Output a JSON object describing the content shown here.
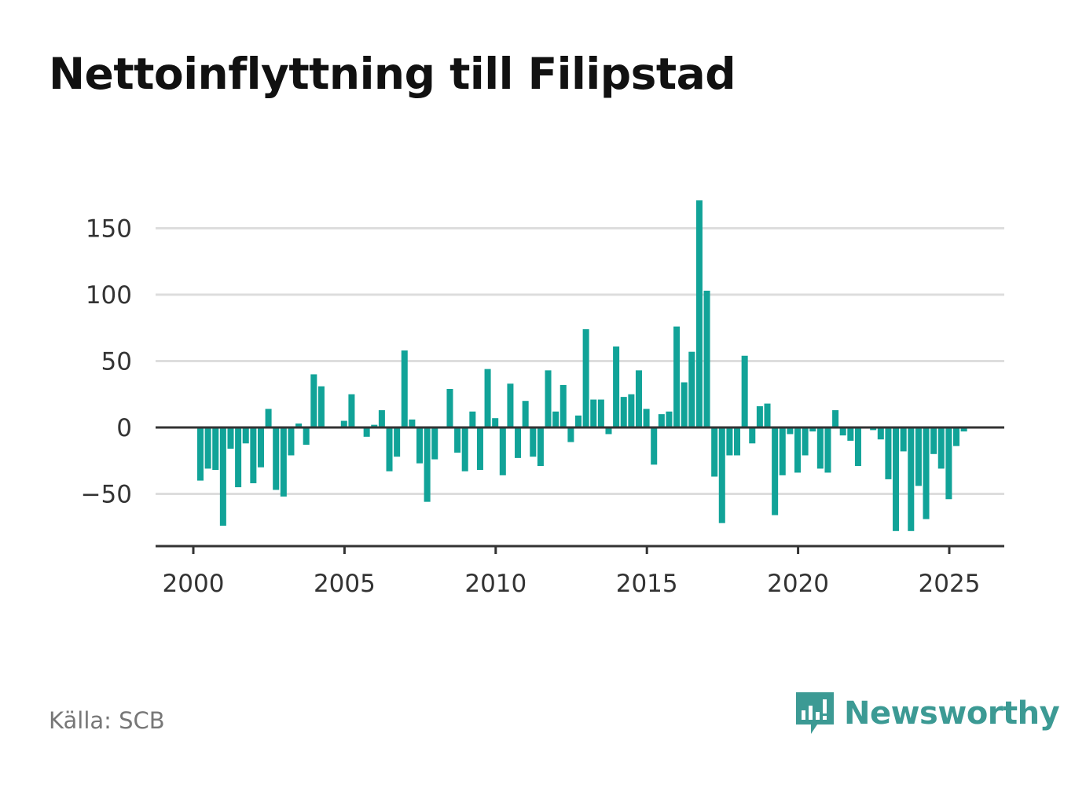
{
  "title": "Nettoinflyttning till Filipstad",
  "source": "Källa: SCB",
  "brand": {
    "name": "Newsworthy",
    "logo_icon": "bar-chart-speech-bubble-icon"
  },
  "colors": {
    "bar": "#11a398",
    "grid": "#dddddd",
    "axis": "#333333",
    "brand": "#3c9a94"
  },
  "chart_data": {
    "type": "bar",
    "title": "Nettoinflyttning till Filipstad",
    "xlabel": "",
    "ylabel": "",
    "x_unit": "quarter",
    "xlim": [
      1999.5,
      2027.5
    ],
    "ylim": [
      -90,
      165
    ],
    "yticks": [
      -50,
      0,
      50,
      100,
      150
    ],
    "ytick_labels": [
      "−50",
      "0",
      "50",
      "100",
      "150"
    ],
    "xticks": [
      2000,
      2005,
      2010,
      2015,
      2020,
      2025
    ],
    "xtick_labels": [
      "2000",
      "2005",
      "2010",
      "2015",
      "2020",
      "2025"
    ],
    "grid": true,
    "categories": [
      "2000 K1",
      "2000 K2",
      "2000 K3",
      "2000 K4",
      "2001 K1",
      "2001 K2",
      "2001 K3",
      "2001 K4",
      "2002 K1",
      "2002 K2",
      "2002 K3",
      "2002 K4",
      "2003 K1",
      "2003 K2",
      "2003 K3",
      "2003 K4",
      "2004 K1",
      "2004 K2",
      "2004 K3",
      "2004 K4",
      "2005 K1",
      "2005 K2",
      "2005 K3",
      "2005 K4",
      "2006 K1",
      "2006 K2",
      "2006 K3",
      "2006 K4",
      "2007 K1",
      "2007 K2",
      "2007 K3",
      "2007 K4",
      "2008 K1",
      "2008 K2",
      "2008 K3",
      "2008 K4",
      "2009 K1",
      "2009 K2",
      "2009 K3",
      "2009 K4",
      "2010 K1",
      "2010 K2",
      "2010 K3",
      "2010 K4",
      "2011 K1",
      "2011 K2",
      "2011 K3",
      "2011 K4",
      "2012 K1",
      "2012 K2",
      "2012 K3",
      "2012 K4",
      "2013 K1",
      "2013 K2",
      "2013 K3",
      "2013 K4",
      "2014 K1",
      "2014 K2",
      "2014 K3",
      "2014 K4",
      "2015 K1",
      "2015 K2",
      "2015 K3",
      "2015 K4",
      "2016 K1",
      "2016 K2",
      "2016 K3",
      "2016 K4",
      "2017 K1",
      "2017 K2",
      "2017 K3",
      "2017 K4",
      "2018 K1",
      "2018 K2",
      "2018 K3",
      "2018 K4",
      "2019 K1",
      "2019 K2",
      "2019 K3",
      "2019 K4",
      "2020 K1",
      "2020 K2",
      "2020 K3",
      "2020 K4",
      "2021 K1",
      "2021 K2",
      "2021 K3",
      "2021 K4",
      "2022 K1",
      "2022 K2",
      "2022 K3",
      "2022 K4",
      "2023 K1",
      "2023 K2",
      "2023 K3",
      "2023 K4",
      "2024 K1",
      "2024 K2",
      "2024 K3",
      "2024 K4",
      "2025 K1",
      "2025 K2"
    ],
    "series": [
      {
        "values": [
          -40,
          -31,
          -32,
          -74,
          -16,
          -45,
          -12,
          -42,
          -30,
          14,
          -47,
          -52,
          -21,
          3,
          -13,
          40,
          31,
          0,
          0,
          5,
          25,
          0,
          -7,
          2,
          13,
          -33,
          -22,
          58,
          6,
          -27,
          -56,
          -24,
          0,
          29,
          -19,
          -33,
          12,
          -32,
          44,
          7,
          -36,
          33,
          -23,
          20,
          -22,
          -29,
          43,
          12,
          32,
          -11,
          9,
          74,
          21,
          21,
          -5,
          61,
          23,
          25,
          43,
          14,
          -28,
          10,
          12,
          76,
          34,
          57,
          171,
          103,
          -37,
          -72,
          -21,
          -21,
          54,
          -12,
          16,
          18,
          -66,
          -36,
          -5,
          -34,
          -21,
          -3,
          -31,
          -34,
          13,
          -6,
          -10,
          -29,
          0,
          -2,
          -9,
          -39,
          -78,
          -18,
          -78,
          -44,
          -69,
          -20,
          -31,
          -54,
          -14,
          -3
        ]
      }
    ]
  }
}
